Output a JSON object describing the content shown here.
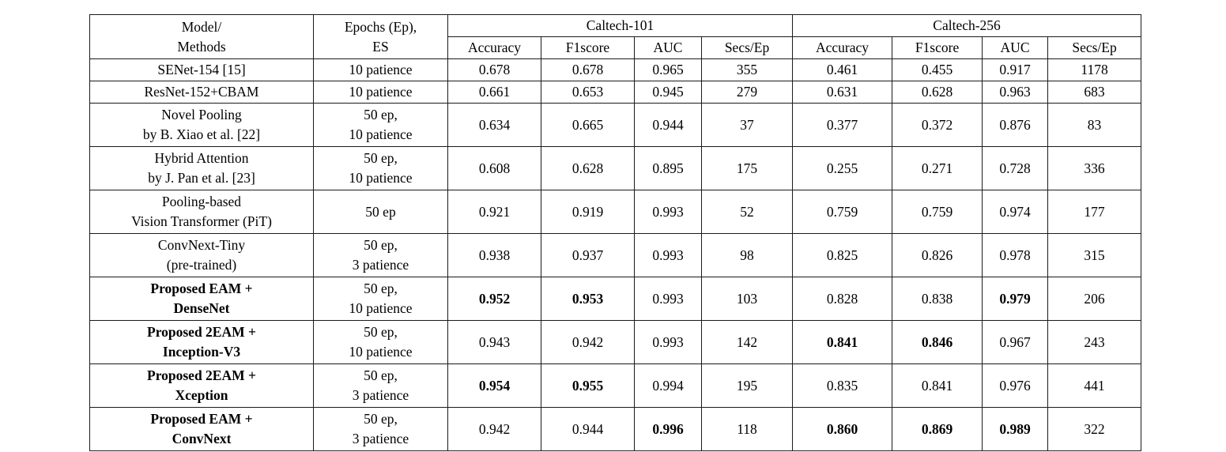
{
  "table": {
    "header": {
      "model_line1": "Model/",
      "model_line2": "Methods",
      "epochs_line1": "Epochs (Ep),",
      "epochs_line2": "ES",
      "groups": [
        {
          "label": "Caltech-101",
          "cols": [
            "Accuracy",
            "F1score",
            "AUC",
            "Secs/Ep"
          ]
        },
        {
          "label": "Caltech-256",
          "cols": [
            "Accuracy",
            "F1score",
            "AUC",
            "Secs/Ep"
          ]
        }
      ]
    },
    "rows": [
      {
        "model": [
          "SENet-154 [15]"
        ],
        "bold_model": false,
        "epochs": [
          "10 patience"
        ],
        "c101": [
          {
            "v": "0.678"
          },
          {
            "v": "0.678"
          },
          {
            "v": "0.965"
          },
          {
            "v": "355"
          }
        ],
        "c256": [
          {
            "v": "0.461"
          },
          {
            "v": "0.455"
          },
          {
            "v": "0.917"
          },
          {
            "v": "1178"
          }
        ]
      },
      {
        "model": [
          "ResNet-152+CBAM"
        ],
        "bold_model": false,
        "epochs": [
          "10 patience"
        ],
        "c101": [
          {
            "v": "0.661"
          },
          {
            "v": "0.653"
          },
          {
            "v": "0.945"
          },
          {
            "v": "279"
          }
        ],
        "c256": [
          {
            "v": "0.631"
          },
          {
            "v": "0.628"
          },
          {
            "v": "0.963"
          },
          {
            "v": "683"
          }
        ]
      },
      {
        "model": [
          "Novel Pooling",
          "by B. Xiao et al. [22]"
        ],
        "bold_model": false,
        "epochs": [
          "50 ep,",
          "10 patience"
        ],
        "c101": [
          {
            "v": "0.634"
          },
          {
            "v": "0.665"
          },
          {
            "v": "0.944"
          },
          {
            "v": "37"
          }
        ],
        "c256": [
          {
            "v": "0.377"
          },
          {
            "v": "0.372"
          },
          {
            "v": "0.876"
          },
          {
            "v": "83"
          }
        ]
      },
      {
        "model": [
          "Hybrid Attention",
          "by J. Pan et al. [23]"
        ],
        "bold_model": false,
        "epochs": [
          "50 ep,",
          "10 patience"
        ],
        "c101": [
          {
            "v": "0.608"
          },
          {
            "v": "0.628"
          },
          {
            "v": "0.895"
          },
          {
            "v": "175"
          }
        ],
        "c256": [
          {
            "v": "0.255"
          },
          {
            "v": "0.271"
          },
          {
            "v": "0.728"
          },
          {
            "v": "336"
          }
        ]
      },
      {
        "model": [
          "Pooling-based",
          "Vision Transformer (PiT)"
        ],
        "bold_model": false,
        "epochs": [
          "50 ep"
        ],
        "c101": [
          {
            "v": "0.921"
          },
          {
            "v": "0.919"
          },
          {
            "v": "0.993"
          },
          {
            "v": "52"
          }
        ],
        "c256": [
          {
            "v": "0.759"
          },
          {
            "v": "0.759"
          },
          {
            "v": "0.974"
          },
          {
            "v": "177"
          }
        ]
      },
      {
        "model": [
          "ConvNext-Tiny",
          "(pre-trained)"
        ],
        "bold_model": false,
        "epochs": [
          "50 ep,",
          "3 patience"
        ],
        "c101": [
          {
            "v": "0.938"
          },
          {
            "v": "0.937"
          },
          {
            "v": "0.993"
          },
          {
            "v": "98"
          }
        ],
        "c256": [
          {
            "v": "0.825"
          },
          {
            "v": "0.826"
          },
          {
            "v": "0.978"
          },
          {
            "v": "315"
          }
        ]
      },
      {
        "model": [
          "Proposed EAM +",
          "DenseNet"
        ],
        "bold_model": true,
        "epochs": [
          "50 ep,",
          "10 patience"
        ],
        "c101": [
          {
            "v": "0.952",
            "b": true
          },
          {
            "v": "0.953",
            "b": true
          },
          {
            "v": "0.993"
          },
          {
            "v": "103"
          }
        ],
        "c256": [
          {
            "v": "0.828"
          },
          {
            "v": "0.838"
          },
          {
            "v": "0.979",
            "b": true
          },
          {
            "v": "206"
          }
        ]
      },
      {
        "model": [
          "Proposed 2EAM +",
          "Inception-V3"
        ],
        "bold_model": true,
        "epochs": [
          "50 ep,",
          "10 patience"
        ],
        "c101": [
          {
            "v": "0.943"
          },
          {
            "v": "0.942"
          },
          {
            "v": "0.993"
          },
          {
            "v": "142"
          }
        ],
        "c256": [
          {
            "v": "0.841",
            "b": true
          },
          {
            "v": "0.846",
            "b": true
          },
          {
            "v": "0.967"
          },
          {
            "v": "243"
          }
        ]
      },
      {
        "model": [
          "Proposed 2EAM +",
          "Xception"
        ],
        "bold_model": true,
        "epochs": [
          "50 ep,",
          "3 patience"
        ],
        "c101": [
          {
            "v": "0.954",
            "b": true
          },
          {
            "v": "0.955",
            "b": true
          },
          {
            "v": "0.994"
          },
          {
            "v": "195"
          }
        ],
        "c256": [
          {
            "v": "0.835"
          },
          {
            "v": "0.841"
          },
          {
            "v": "0.976"
          },
          {
            "v": "441"
          }
        ]
      },
      {
        "model": [
          "Proposed EAM +",
          "ConvNext"
        ],
        "bold_model": true,
        "epochs": [
          "50 ep,",
          "3 patience"
        ],
        "c101": [
          {
            "v": "0.942"
          },
          {
            "v": "0.944"
          },
          {
            "v": "0.996",
            "b": true
          },
          {
            "v": "118"
          }
        ],
        "c256": [
          {
            "v": "0.860",
            "b": true
          },
          {
            "v": "0.869",
            "b": true
          },
          {
            "v": "0.989",
            "b": true
          },
          {
            "v": "322"
          }
        ]
      }
    ]
  }
}
